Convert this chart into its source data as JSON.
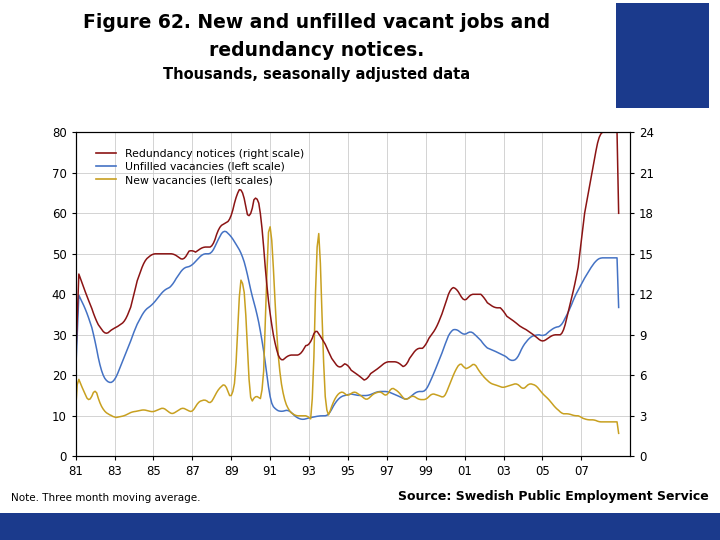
{
  "title_line1": "Figure 62. New and unfilled vacant jobs and",
  "title_line2": "redundancy notices.",
  "subtitle": "Thousands, seasonally adjusted data",
  "legend": [
    "Redundancy notices (right scale)",
    "Unfilled vacancies (left scale)",
    "New vacancies (left scales)"
  ],
  "line_colors": [
    "#8B1414",
    "#4472C4",
    "#C8A020"
  ],
  "left_ylim": [
    0,
    80
  ],
  "right_ylim": [
    0,
    24
  ],
  "left_yticks": [
    0,
    10,
    20,
    30,
    40,
    50,
    60,
    70,
    80
  ],
  "right_yticks": [
    0,
    3,
    6,
    9,
    12,
    15,
    18,
    21,
    24
  ],
  "xtick_labels": [
    "81",
    "83",
    "85",
    "87",
    "89",
    "91",
    "93",
    "95",
    "97",
    "99",
    "01",
    "03",
    "05",
    "07"
  ],
  "note": "Note. Three month moving average.",
  "source": "Source: Swedish Public Employment Service",
  "background_color": "#FFFFFF",
  "footer_bar_color": "#1B3A8C",
  "logo_bg_color": "#1B3A8C",
  "grid_color": "#CCCCCC"
}
